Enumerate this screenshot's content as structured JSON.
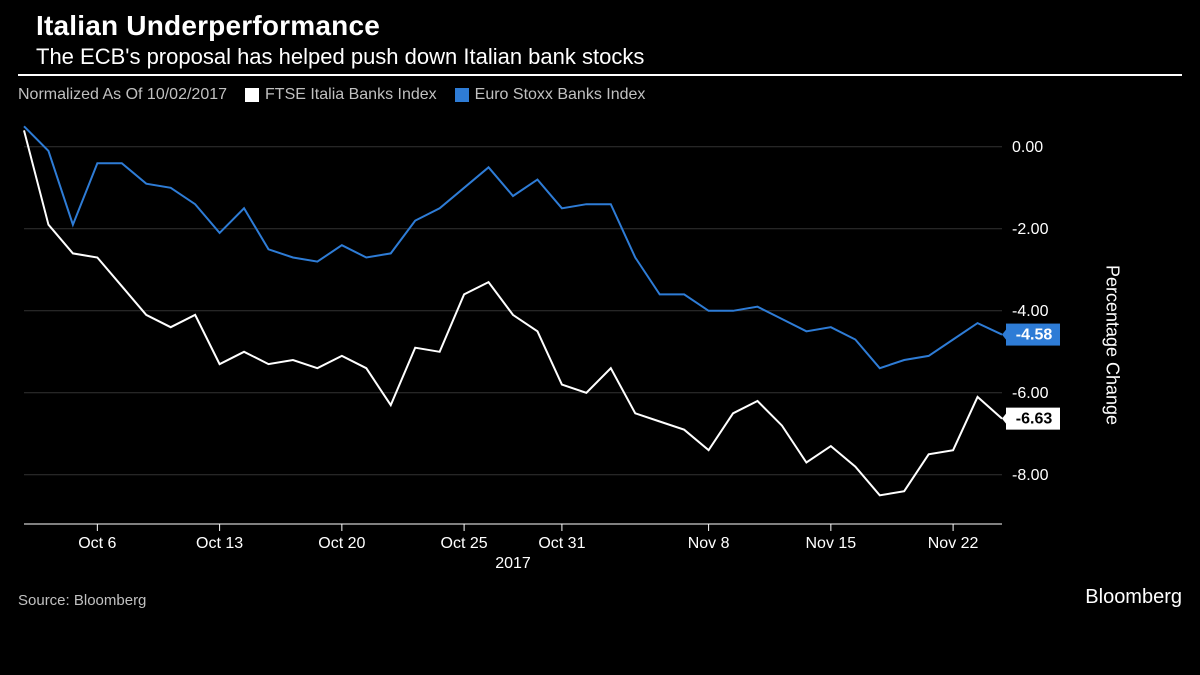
{
  "header": {
    "title": "Italian Underperformance",
    "subtitle": "The ECB's proposal has helped push down Italian bank stocks"
  },
  "legend": {
    "normalized_label": "Normalized As Of 10/02/2017",
    "series1_label": "FTSE Italia Banks Index",
    "series2_label": "Euro Stoxx Banks Index"
  },
  "chart": {
    "type": "line",
    "background_color": "#000000",
    "grid_color": "#333333",
    "text_color": "#ffffff",
    "axis_label_fontsize": 16,
    "title_fontsize": 28,
    "subtitle_fontsize": 22,
    "line_width": 2,
    "y_axis": {
      "title": "Percentage Change",
      "min": -9.2,
      "max": 0.8,
      "ticks": [
        0.0,
        -2.0,
        -4.0,
        -6.0,
        -8.0
      ],
      "tick_labels": [
        "0.00",
        "-2.00",
        "-4.00",
        "-6.00",
        "-8.00"
      ]
    },
    "x_axis": {
      "year_label": "2017",
      "min": 0,
      "max": 40,
      "ticks": [
        3,
        8,
        13,
        18,
        22,
        28,
        33,
        38
      ],
      "tick_labels": [
        "Oct 6",
        "Oct 13",
        "Oct 20",
        "Oct 25",
        "Oct 31",
        "Nov 8",
        "Nov 15",
        "Nov 22"
      ]
    },
    "callout_series1": "-6.63",
    "callout_series2": "-4.58",
    "series": [
      {
        "name": "FTSE Italia Banks Index",
        "color": "#ffffff",
        "points": [
          [
            0,
            0.4
          ],
          [
            1,
            -1.9
          ],
          [
            2,
            -2.6
          ],
          [
            3,
            -2.7
          ],
          [
            4,
            -3.4
          ],
          [
            5,
            -4.1
          ],
          [
            6,
            -4.4
          ],
          [
            7,
            -4.1
          ],
          [
            8,
            -5.3
          ],
          [
            9,
            -5.0
          ],
          [
            10,
            -5.3
          ],
          [
            11,
            -5.2
          ],
          [
            12,
            -5.4
          ],
          [
            13,
            -5.1
          ],
          [
            14,
            -5.4
          ],
          [
            15,
            -6.3
          ],
          [
            16,
            -4.9
          ],
          [
            17,
            -5.0
          ],
          [
            18,
            -3.6
          ],
          [
            19,
            -3.3
          ],
          [
            20,
            -4.1
          ],
          [
            21,
            -4.5
          ],
          [
            22,
            -5.8
          ],
          [
            23,
            -6.0
          ],
          [
            24,
            -5.4
          ],
          [
            25,
            -6.5
          ],
          [
            26,
            -6.7
          ],
          [
            27,
            -6.9
          ],
          [
            28,
            -7.4
          ],
          [
            29,
            -6.5
          ],
          [
            30,
            -6.2
          ],
          [
            31,
            -6.8
          ],
          [
            32,
            -7.7
          ],
          [
            33,
            -7.3
          ],
          [
            34,
            -7.8
          ],
          [
            35,
            -8.5
          ],
          [
            36,
            -8.4
          ],
          [
            37,
            -7.5
          ],
          [
            38,
            -7.4
          ],
          [
            39,
            -6.1
          ],
          [
            40,
            -6.63
          ]
        ]
      },
      {
        "name": "Euro Stoxx Banks Index",
        "color": "#2e7cd6",
        "points": [
          [
            0,
            0.5
          ],
          [
            1,
            -0.1
          ],
          [
            2,
            -1.9
          ],
          [
            3,
            -0.4
          ],
          [
            4,
            -0.4
          ],
          [
            5,
            -0.9
          ],
          [
            6,
            -1.0
          ],
          [
            7,
            -1.4
          ],
          [
            8,
            -2.1
          ],
          [
            9,
            -1.5
          ],
          [
            10,
            -2.5
          ],
          [
            11,
            -2.7
          ],
          [
            12,
            -2.8
          ],
          [
            13,
            -2.4
          ],
          [
            14,
            -2.7
          ],
          [
            15,
            -2.6
          ],
          [
            16,
            -1.8
          ],
          [
            17,
            -1.5
          ],
          [
            18,
            -1.0
          ],
          [
            19,
            -0.5
          ],
          [
            20,
            -1.2
          ],
          [
            21,
            -0.8
          ],
          [
            22,
            -1.5
          ],
          [
            23,
            -1.4
          ],
          [
            24,
            -1.4
          ],
          [
            25,
            -2.7
          ],
          [
            26,
            -3.6
          ],
          [
            27,
            -3.6
          ],
          [
            28,
            -4.0
          ],
          [
            29,
            -4.0
          ],
          [
            30,
            -3.9
          ],
          [
            31,
            -4.2
          ],
          [
            32,
            -4.5
          ],
          [
            33,
            -4.4
          ],
          [
            34,
            -4.7
          ],
          [
            35,
            -5.4
          ],
          [
            36,
            -5.2
          ],
          [
            37,
            -5.1
          ],
          [
            38,
            -4.7
          ],
          [
            39,
            -4.3
          ],
          [
            40,
            -4.58
          ]
        ]
      }
    ]
  },
  "footer": {
    "source": "Source: Bloomberg",
    "brand": "Bloomberg"
  }
}
